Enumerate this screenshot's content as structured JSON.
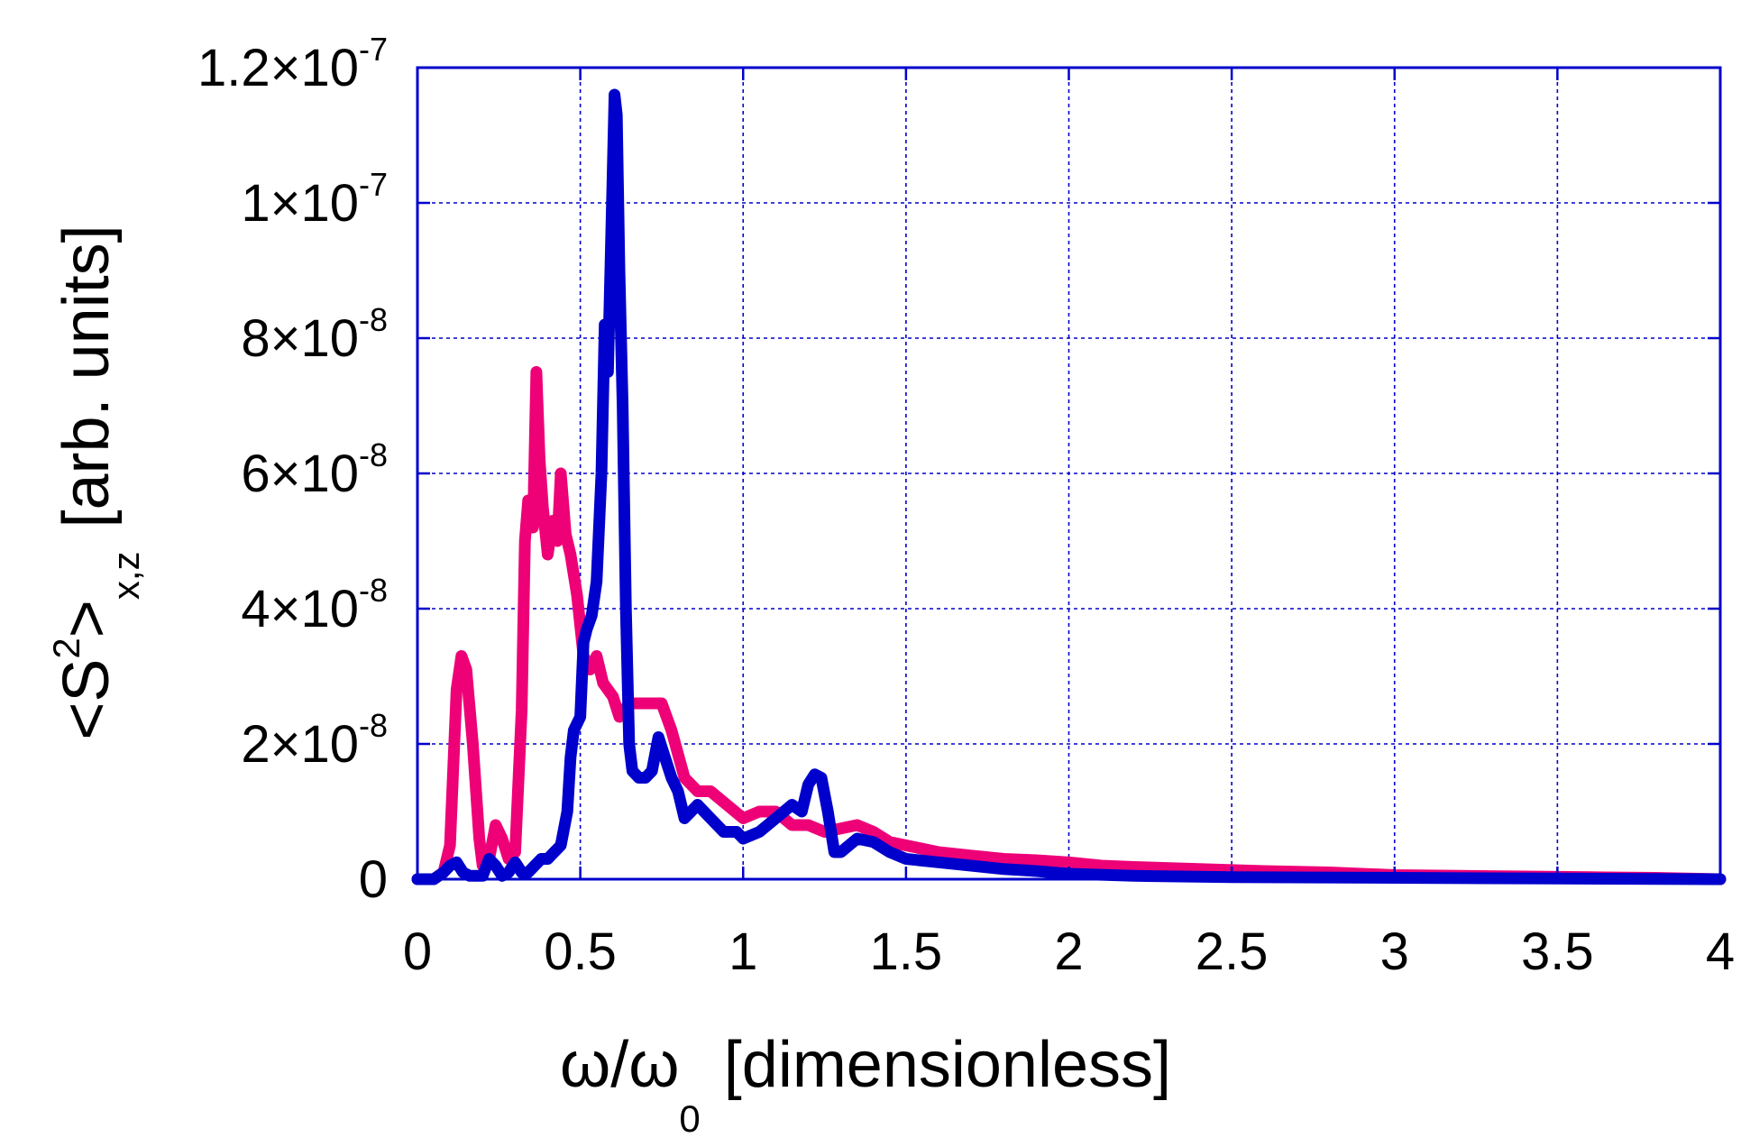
{
  "chart_data": {
    "type": "line",
    "xlabel": {
      "prefix": "ω/ω",
      "subscript": "0",
      "suffix": "[dimensionless]"
    },
    "ylabel": {
      "prefix": "<S",
      "superscript": "2",
      "middle": ">",
      "subscript": "x,z",
      "suffix": "[arb. units]"
    },
    "xlim": [
      0,
      4
    ],
    "ylim": [
      0,
      1.2e-07
    ],
    "grid": true,
    "x_ticks": [
      {
        "value": 0,
        "label": "0"
      },
      {
        "value": 0.5,
        "label": "0.5"
      },
      {
        "value": 1,
        "label": "1"
      },
      {
        "value": 1.5,
        "label": "1.5"
      },
      {
        "value": 2,
        "label": "2"
      },
      {
        "value": 2.5,
        "label": "2.5"
      },
      {
        "value": 3,
        "label": "3"
      },
      {
        "value": 3.5,
        "label": "3.5"
      },
      {
        "value": 4,
        "label": "4"
      }
    ],
    "y_ticks": [
      {
        "value": 0,
        "mantissa": "0",
        "exponent": ""
      },
      {
        "value": 2e-08,
        "mantissa": "2×10",
        "exponent": "-8"
      },
      {
        "value": 4e-08,
        "mantissa": "4×10",
        "exponent": "-8"
      },
      {
        "value": 6e-08,
        "mantissa": "6×10",
        "exponent": "-8"
      },
      {
        "value": 8e-08,
        "mantissa": "8×10",
        "exponent": "-8"
      },
      {
        "value": 1e-07,
        "mantissa": "1×10",
        "exponent": "-7"
      },
      {
        "value": 1.2e-07,
        "mantissa": "1.2×10",
        "exponent": "-7"
      }
    ],
    "series": [
      {
        "color": "#ee0077",
        "line_width": 13,
        "points": [
          [
            0,
            0.0
          ],
          [
            0.05,
            0.0
          ],
          [
            0.08,
            1e-09
          ],
          [
            0.1,
            5e-09
          ],
          [
            0.12,
            2.8e-08
          ],
          [
            0.135,
            3.3e-08
          ],
          [
            0.15,
            3.1e-08
          ],
          [
            0.17,
            2e-08
          ],
          [
            0.19,
            6e-09
          ],
          [
            0.2,
            2e-09
          ],
          [
            0.22,
            3e-09
          ],
          [
            0.24,
            8e-09
          ],
          [
            0.26,
            6e-09
          ],
          [
            0.28,
            3e-09
          ],
          [
            0.3,
            4e-09
          ],
          [
            0.32,
            2.5e-08
          ],
          [
            0.33,
            5e-08
          ],
          [
            0.34,
            5.6e-08
          ],
          [
            0.355,
            5.2e-08
          ],
          [
            0.365,
            7.5e-08
          ],
          [
            0.375,
            6.2e-08
          ],
          [
            0.385,
            5.5e-08
          ],
          [
            0.4,
            4.8e-08
          ],
          [
            0.415,
            5.3e-08
          ],
          [
            0.43,
            5e-08
          ],
          [
            0.44,
            6e-08
          ],
          [
            0.455,
            5.1e-08
          ],
          [
            0.47,
            4.8e-08
          ],
          [
            0.49,
            4.2e-08
          ],
          [
            0.51,
            3.3e-08
          ],
          [
            0.53,
            3.1e-08
          ],
          [
            0.55,
            3.3e-08
          ],
          [
            0.57,
            2.9e-08
          ],
          [
            0.6,
            2.7e-08
          ],
          [
            0.62,
            2.4e-08
          ],
          [
            0.65,
            2.6e-08
          ],
          [
            0.7,
            2.6e-08
          ],
          [
            0.75,
            2.6e-08
          ],
          [
            0.78,
            2.2e-08
          ],
          [
            0.82,
            1.5e-08
          ],
          [
            0.86,
            1.3e-08
          ],
          [
            0.9,
            1.3e-08
          ],
          [
            0.95,
            1.1e-08
          ],
          [
            1.0,
            9e-09
          ],
          [
            1.05,
            1e-08
          ],
          [
            1.1,
            1e-08
          ],
          [
            1.15,
            8e-09
          ],
          [
            1.2,
            8e-09
          ],
          [
            1.25,
            7e-09
          ],
          [
            1.3,
            7.5e-09
          ],
          [
            1.35,
            8e-09
          ],
          [
            1.4,
            7e-09
          ],
          [
            1.45,
            5.5e-09
          ],
          [
            1.5,
            5e-09
          ],
          [
            1.6,
            4e-09
          ],
          [
            1.7,
            3.5e-09
          ],
          [
            1.8,
            3e-09
          ],
          [
            1.9,
            2.8e-09
          ],
          [
            2.0,
            2.5e-09
          ],
          [
            2.1,
            2e-09
          ],
          [
            2.2,
            1.8e-09
          ],
          [
            2.4,
            1.5e-09
          ],
          [
            2.6,
            1.2e-09
          ],
          [
            2.8,
            1e-09
          ],
          [
            3.0,
            6e-10
          ],
          [
            3.2,
            5e-10
          ],
          [
            3.4,
            4e-10
          ],
          [
            3.6,
            3e-10
          ],
          [
            3.8,
            2e-10
          ],
          [
            4.0,
            0.0
          ]
        ]
      },
      {
        "color": "#0000cc",
        "line_width": 13,
        "points": [
          [
            0,
            0.0
          ],
          [
            0.05,
            0.0
          ],
          [
            0.08,
            1e-09
          ],
          [
            0.1,
            2e-09
          ],
          [
            0.12,
            2.5e-09
          ],
          [
            0.14,
            1e-09
          ],
          [
            0.16,
            5e-10
          ],
          [
            0.2,
            5e-10
          ],
          [
            0.22,
            3e-09
          ],
          [
            0.24,
            2e-09
          ],
          [
            0.26,
            5e-10
          ],
          [
            0.28,
            1e-09
          ],
          [
            0.3,
            2.5e-09
          ],
          [
            0.32,
            1e-09
          ],
          [
            0.34,
            1e-09
          ],
          [
            0.36,
            2e-09
          ],
          [
            0.38,
            3e-09
          ],
          [
            0.4,
            3e-09
          ],
          [
            0.42,
            4e-09
          ],
          [
            0.44,
            5e-09
          ],
          [
            0.46,
            1e-08
          ],
          [
            0.47,
            1.8e-08
          ],
          [
            0.48,
            2.2e-08
          ],
          [
            0.5,
            2.4e-08
          ],
          [
            0.51,
            3.5e-08
          ],
          [
            0.52,
            3.7e-08
          ],
          [
            0.535,
            3.9e-08
          ],
          [
            0.55,
            4.4e-08
          ],
          [
            0.565,
            6e-08
          ],
          [
            0.575,
            8.2e-08
          ],
          [
            0.585,
            7.5e-08
          ],
          [
            0.595,
            9.5e-08
          ],
          [
            0.605,
            1.16e-07
          ],
          [
            0.612,
            1.13e-07
          ],
          [
            0.62,
            9e-08
          ],
          [
            0.63,
            7e-08
          ],
          [
            0.64,
            4e-08
          ],
          [
            0.65,
            2e-08
          ],
          [
            0.66,
            1.6e-08
          ],
          [
            0.68,
            1.5e-08
          ],
          [
            0.7,
            1.5e-08
          ],
          [
            0.72,
            1.6e-08
          ],
          [
            0.74,
            2.1e-08
          ],
          [
            0.76,
            1.8e-08
          ],
          [
            0.78,
            1.5e-08
          ],
          [
            0.8,
            1.3e-08
          ],
          [
            0.82,
            9e-09
          ],
          [
            0.84,
            1e-08
          ],
          [
            0.86,
            1.1e-08
          ],
          [
            0.9,
            9e-09
          ],
          [
            0.94,
            7e-09
          ],
          [
            0.98,
            7e-09
          ],
          [
            1.0,
            6e-09
          ],
          [
            1.05,
            7e-09
          ],
          [
            1.1,
            9e-09
          ],
          [
            1.15,
            1.1e-08
          ],
          [
            1.18,
            1e-08
          ],
          [
            1.2,
            1.4e-08
          ],
          [
            1.22,
            1.55e-08
          ],
          [
            1.24,
            1.5e-08
          ],
          [
            1.26,
            1e-08
          ],
          [
            1.28,
            4e-09
          ],
          [
            1.3,
            4e-09
          ],
          [
            1.35,
            6e-09
          ],
          [
            1.4,
            5.5e-09
          ],
          [
            1.45,
            4e-09
          ],
          [
            1.5,
            3e-09
          ],
          [
            1.6,
            2.5e-09
          ],
          [
            1.7,
            2e-09
          ],
          [
            1.8,
            1.5e-09
          ],
          [
            1.9,
            1.2e-09
          ],
          [
            2.0,
            8e-10
          ],
          [
            2.2,
            5e-10
          ],
          [
            2.5,
            3e-10
          ],
          [
            3.0,
            2e-10
          ],
          [
            3.5,
            1e-10
          ],
          [
            4.0,
            0.0
          ]
        ]
      }
    ]
  }
}
